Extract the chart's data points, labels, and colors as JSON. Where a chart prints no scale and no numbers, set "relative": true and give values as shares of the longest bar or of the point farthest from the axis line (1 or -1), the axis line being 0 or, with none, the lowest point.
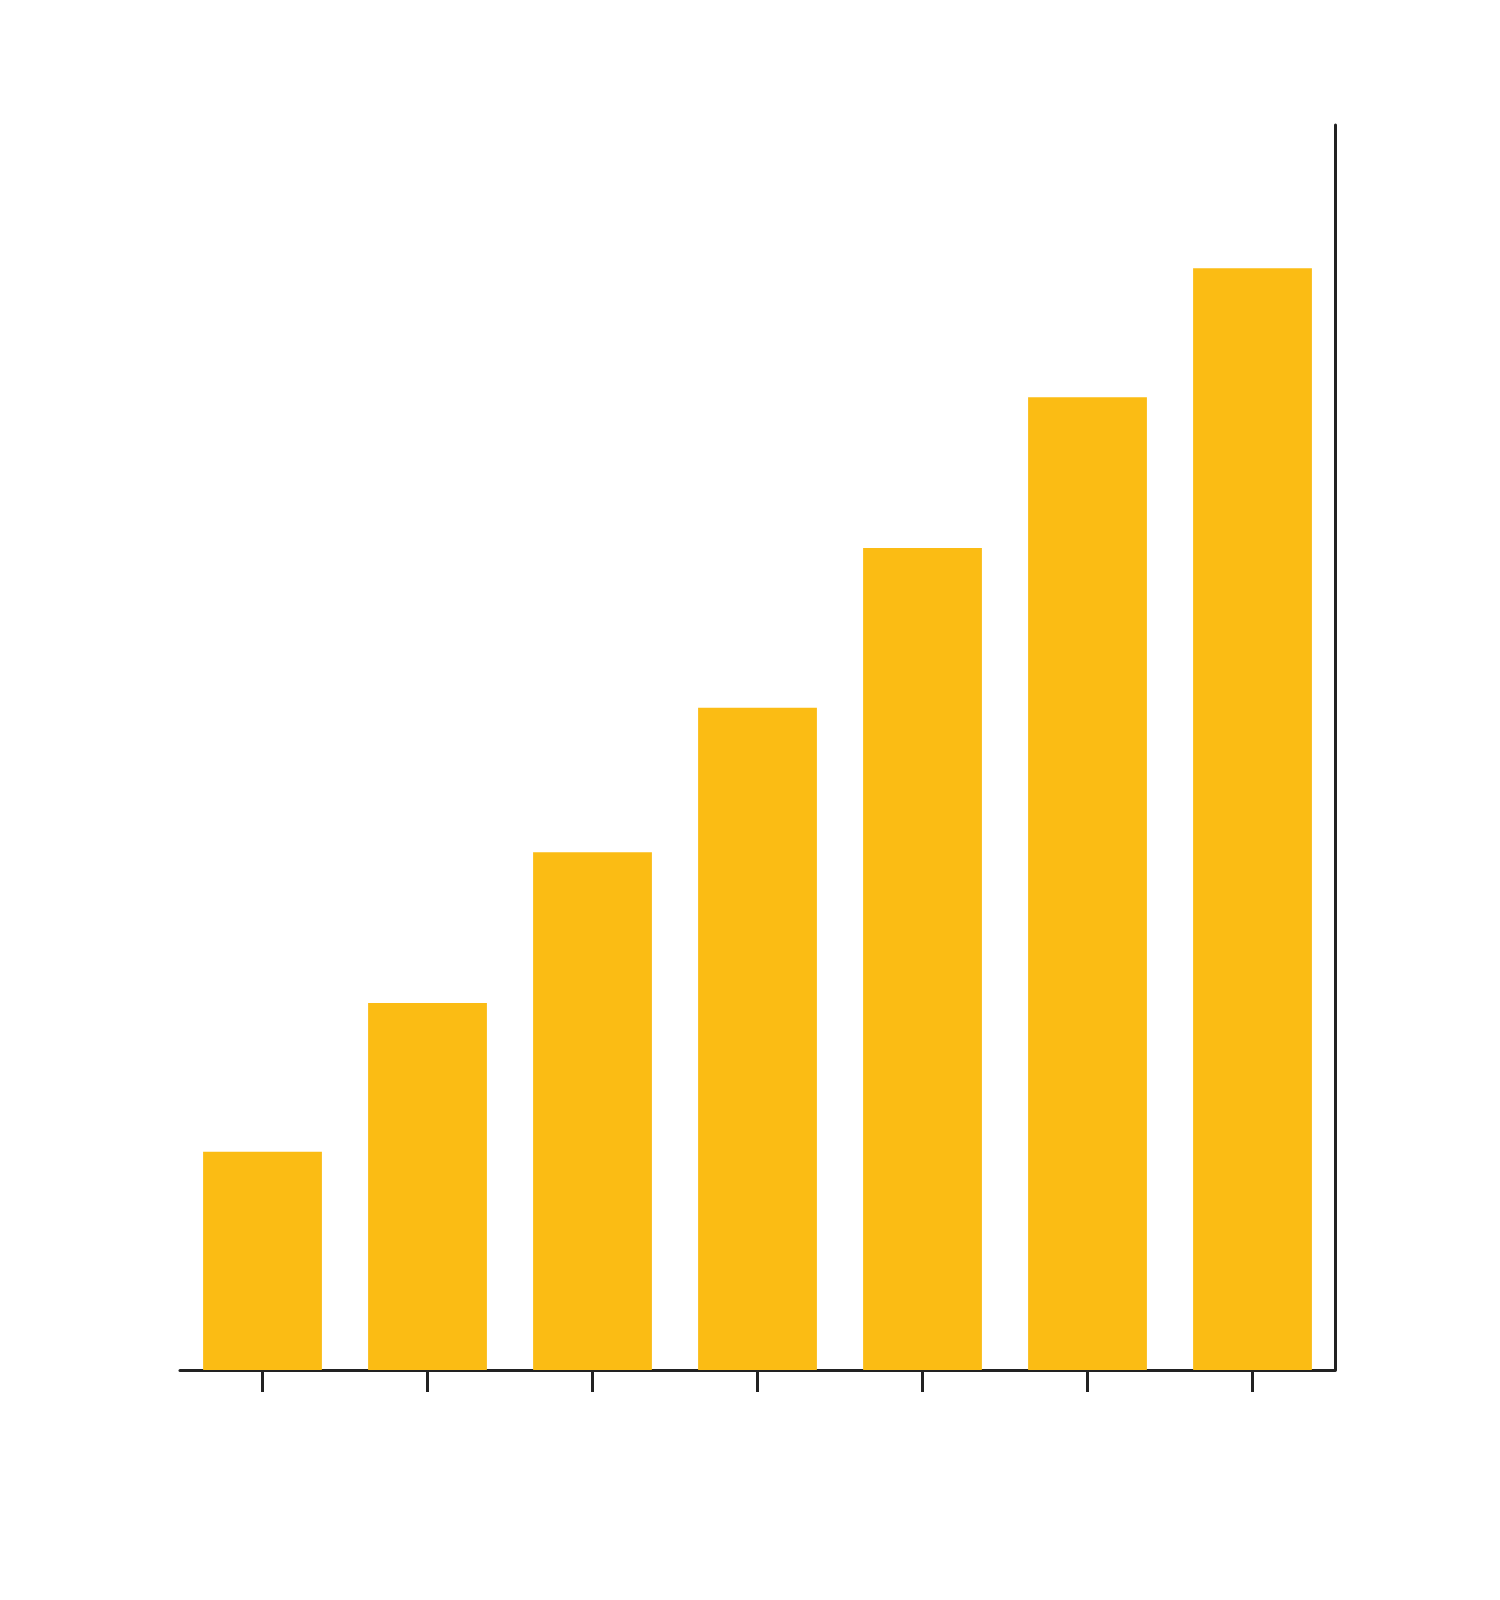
{
  "chart_data": {
    "type": "bar",
    "relative": true,
    "categories": [
      null,
      null,
      null,
      null,
      null,
      null,
      null
    ],
    "values": [
      0.198,
      0.333,
      0.47,
      0.601,
      0.746,
      0.883,
      1
    ],
    "color": "#fbbc14"
  }
}
